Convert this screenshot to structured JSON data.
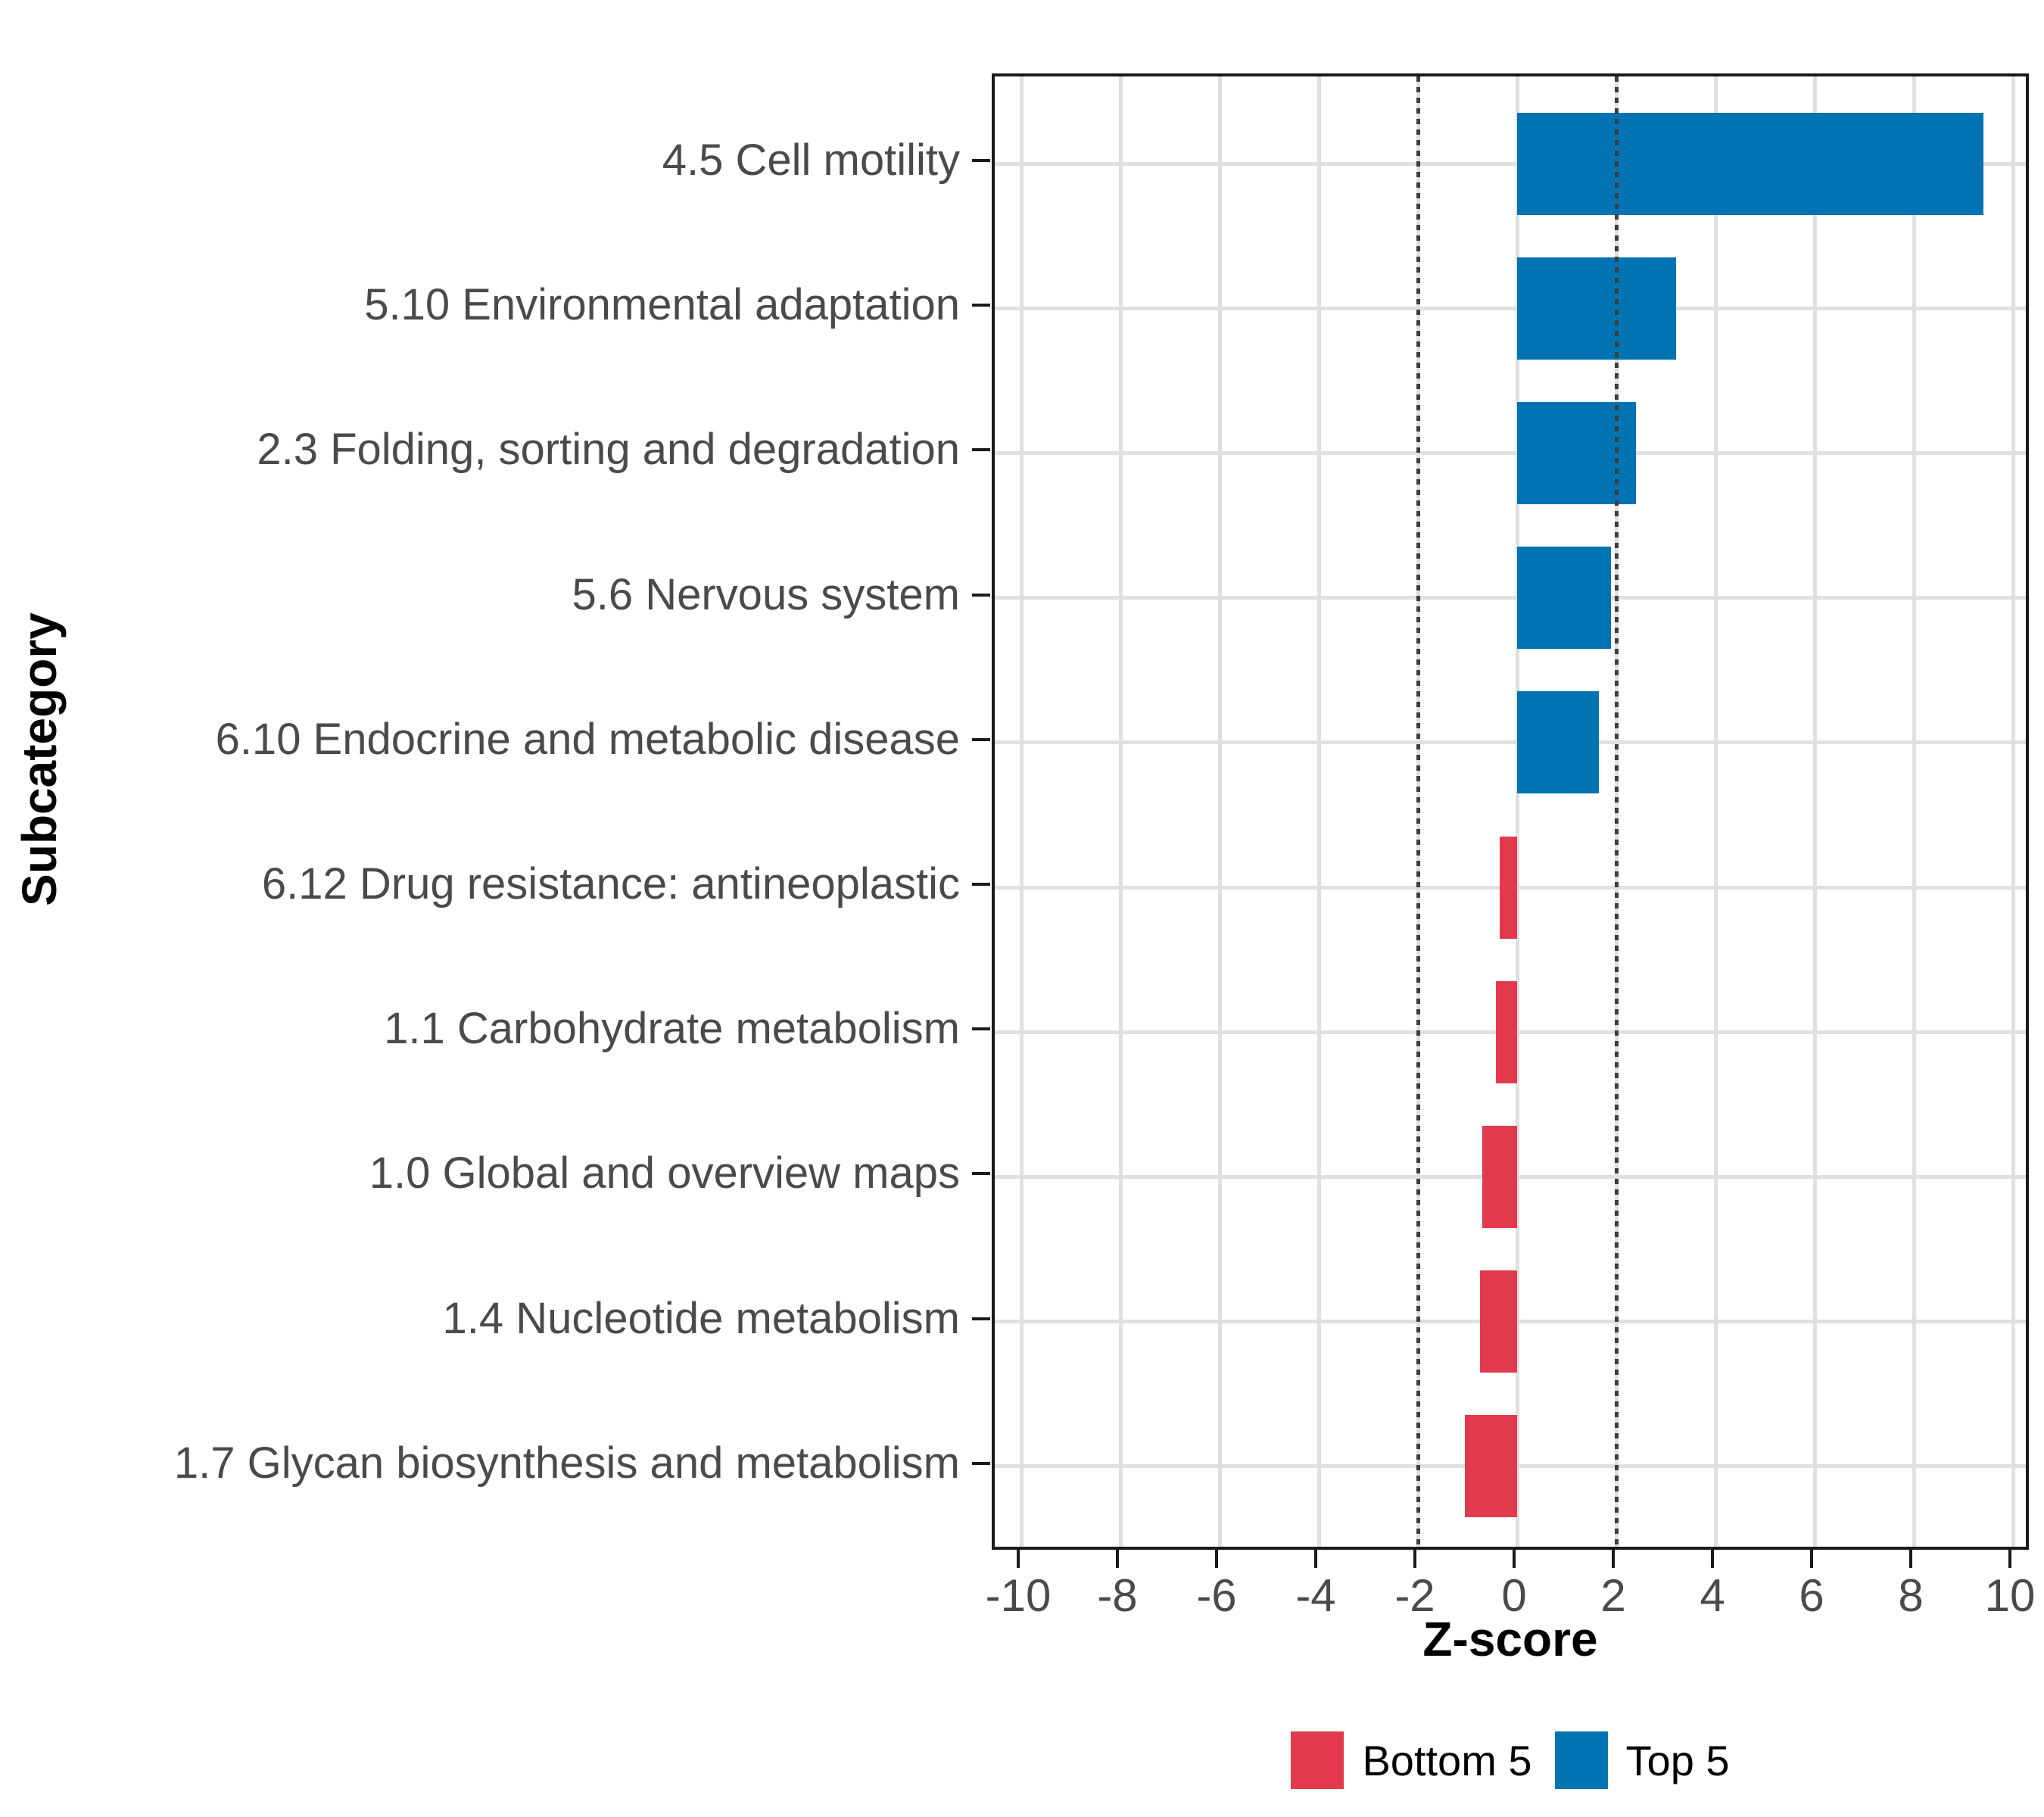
{
  "figure": {
    "background": "#FFFFFF"
  },
  "chart_data": {
    "type": "bar",
    "orientation": "horizontal",
    "xlabel": "Z-score",
    "ylabel": "Subcategory",
    "xlim": [
      -10.5,
      10.5
    ],
    "x_ticks": [
      -10,
      -8,
      -6,
      -4,
      -2,
      0,
      2,
      4,
      6,
      8,
      10
    ],
    "reference_lines": [
      -2,
      2
    ],
    "reference_line_style": "dotted",
    "reference_line_color": "#3d3d3d",
    "grid": "major",
    "legend_position": "bottom",
    "categories": [
      "4.5 Cell motility",
      "5.10 Environmental adaptation",
      "2.3 Folding, sorting and degradation",
      "5.6 Nervous system",
      "6.10 Endocrine and metabolic disease",
      "6.12 Drug resistance: antineoplastic",
      "1.1 Carbohydrate metabolism",
      "1.0 Global and overview maps",
      "1.4 Nucleotide metabolism",
      "1.7 Glycan biosynthesis and metabolism"
    ],
    "values": [
      9.4,
      3.2,
      2.4,
      1.9,
      1.65,
      -0.35,
      -0.43,
      -0.7,
      -0.75,
      -1.05
    ],
    "groups": [
      "Top 5",
      "Top 5",
      "Top 5",
      "Top 5",
      "Top 5",
      "Bottom 5",
      "Bottom 5",
      "Bottom 5",
      "Bottom 5",
      "Bottom 5"
    ],
    "series_colors": {
      "Top 5": "#0173B2",
      "Bottom 5": "#E23A4C"
    },
    "legend": {
      "entries": [
        {
          "label": "Bottom 5",
          "color": "#E23A4C"
        },
        {
          "label": "Top 5",
          "color": "#0173B2"
        }
      ]
    }
  }
}
